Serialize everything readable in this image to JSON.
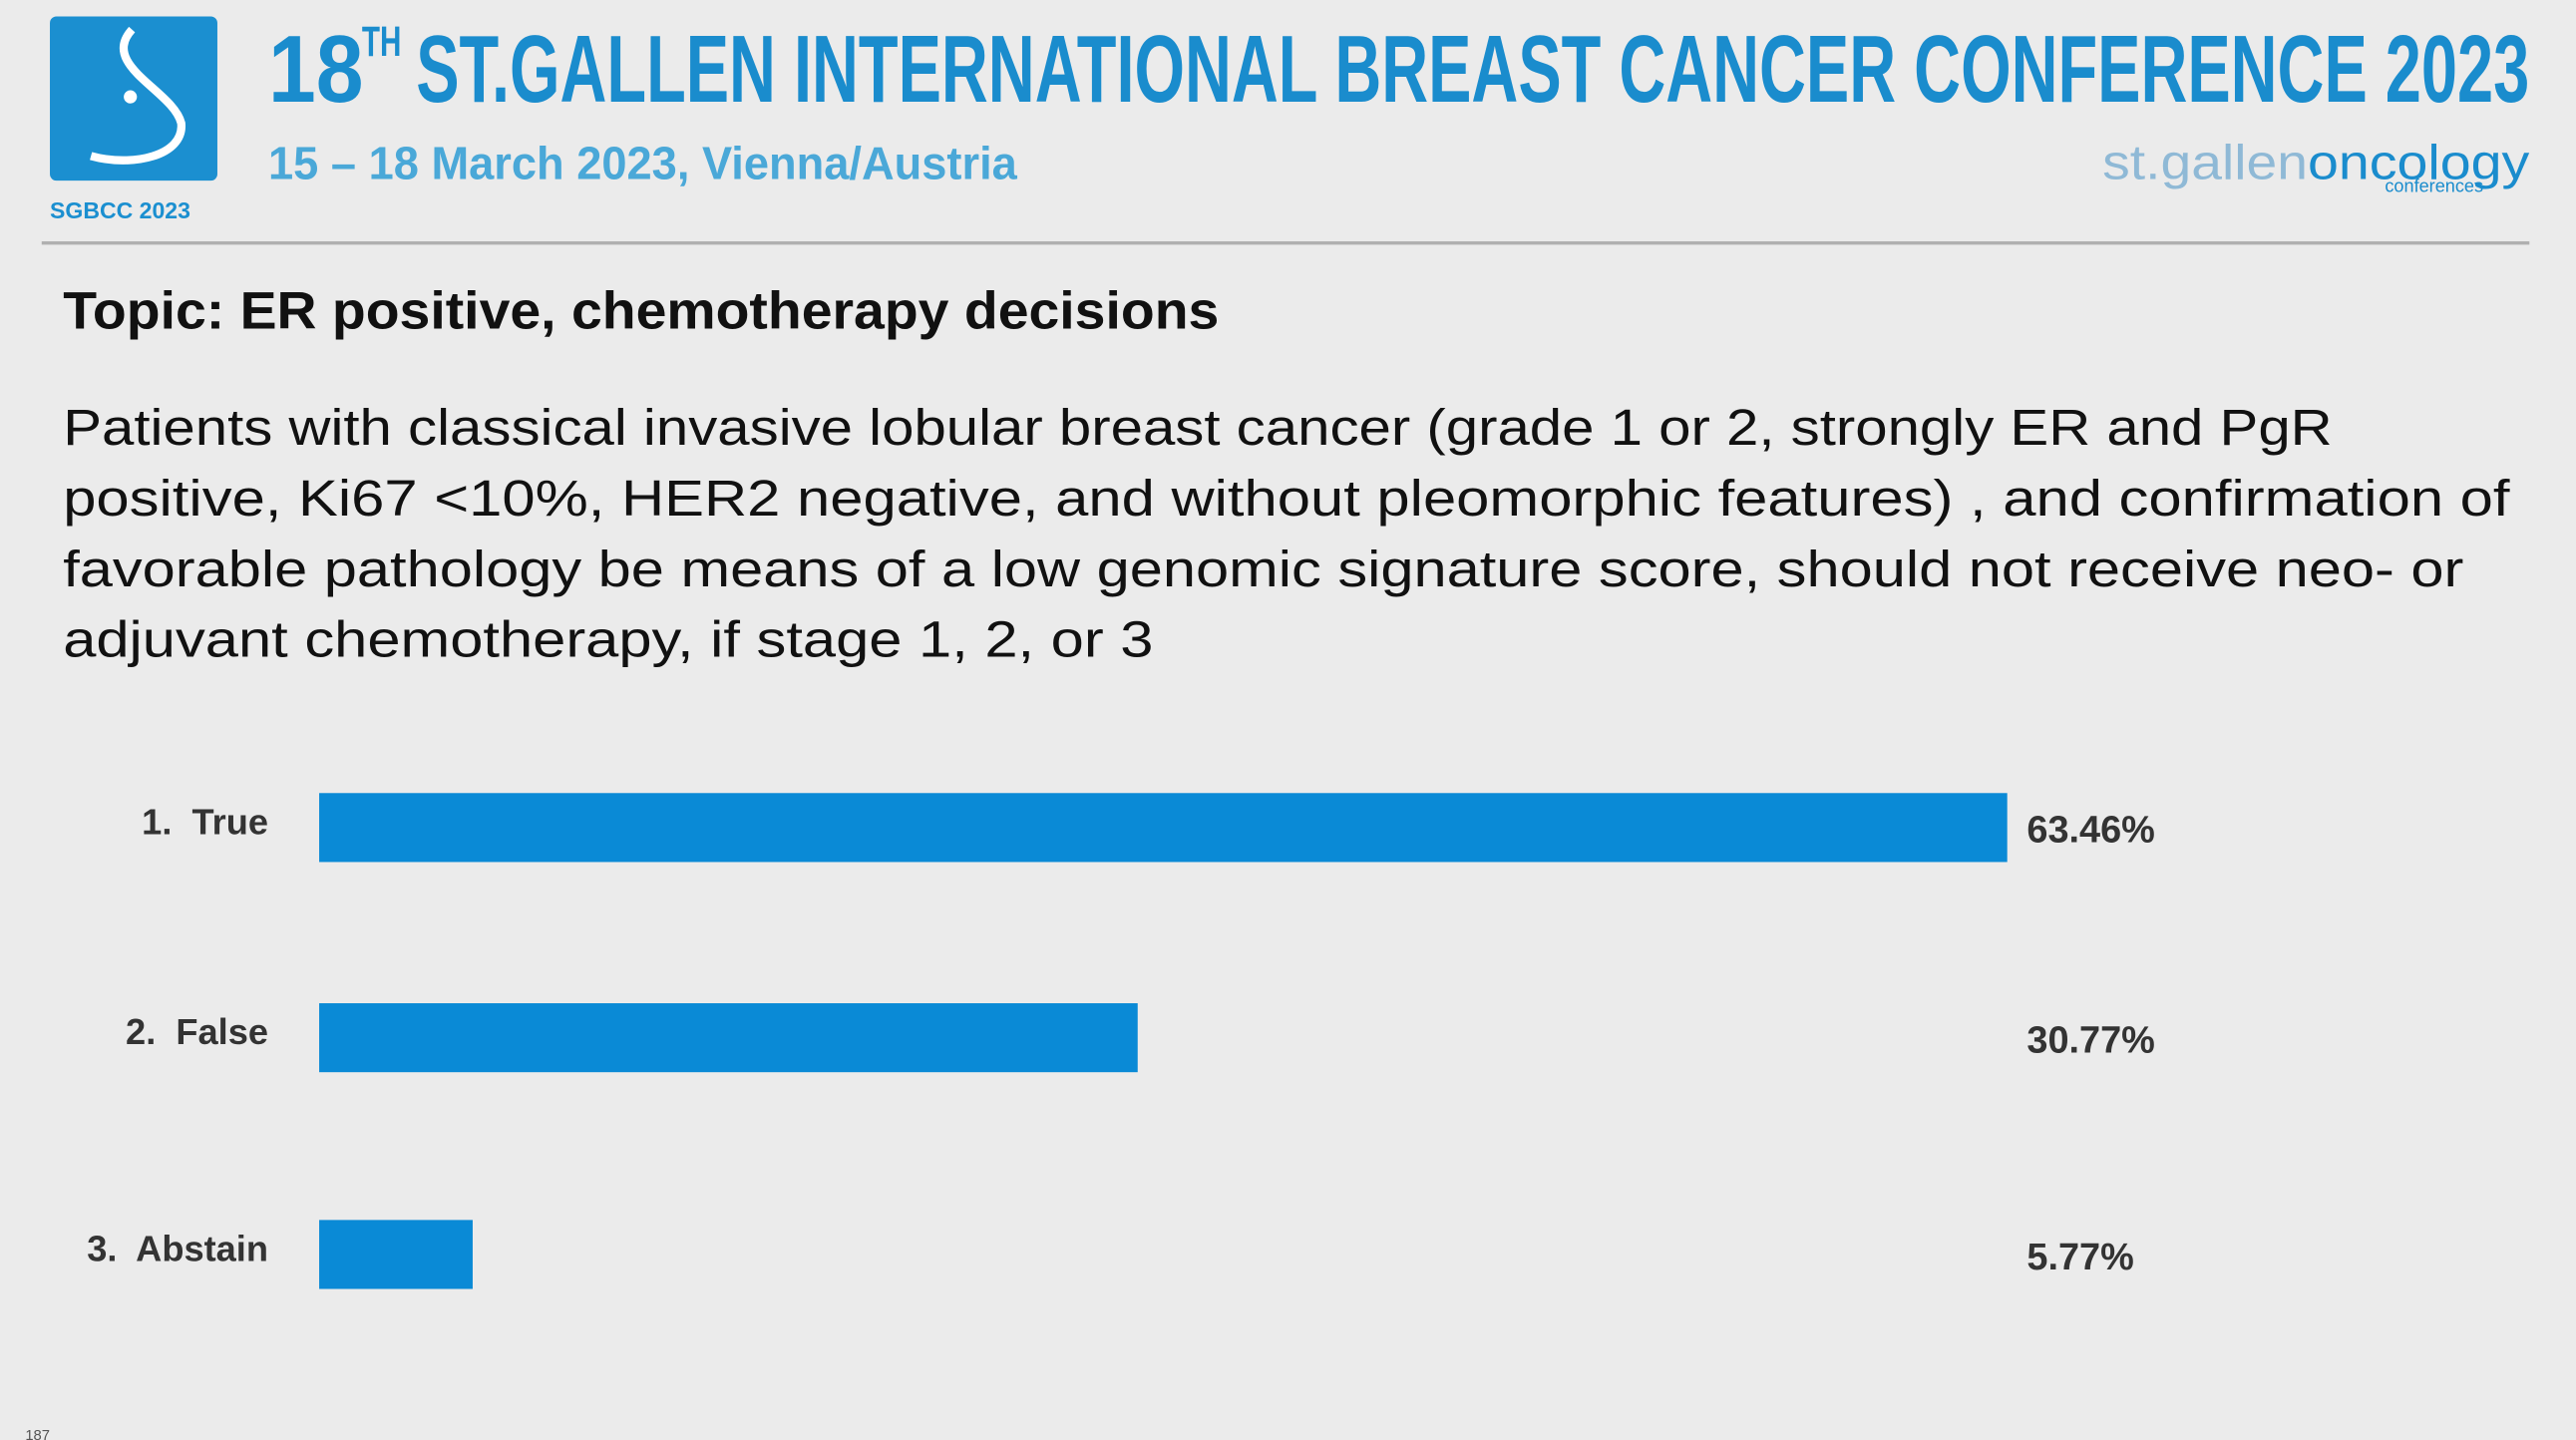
{
  "header": {
    "title_number": "18",
    "title_superscript": "TH",
    "title_rest": "ST.GALLEN INTERNATIONAL BREAST CANCER CONFERENCE 2023",
    "date": "15 – 18 March 2023, Vienna/Austria",
    "logo_caption": "SGBCC 2023",
    "brand_left": "st.gallen",
    "brand_right": "oncology",
    "brand_sub": "conferences"
  },
  "slide": {
    "topic": "Topic: ER positive, chemotherapy decisions",
    "question_lines": [
      "Patients with classical invasive lobular breast cancer (grade 1 or 2, strongly ER and PgR",
      "positive, Ki67 <10%, HER2 negative, and without pleomorphic features) , and confirmation of",
      "favorable pathology be means of a low genomic signature score, should not receive neo- or",
      "adjuvant chemotherapy, if stage 1, 2, or 3"
    ],
    "page_number": "187"
  },
  "chart_data": {
    "type": "bar",
    "orientation": "horizontal",
    "categories": [
      "1.  True",
      "2.  False",
      "3.  Abstain"
    ],
    "values": [
      63.46,
      30.77,
      5.77
    ],
    "value_labels": [
      "63.46%",
      "30.77%",
      "5.77%"
    ],
    "color": "#0a8ad6"
  }
}
